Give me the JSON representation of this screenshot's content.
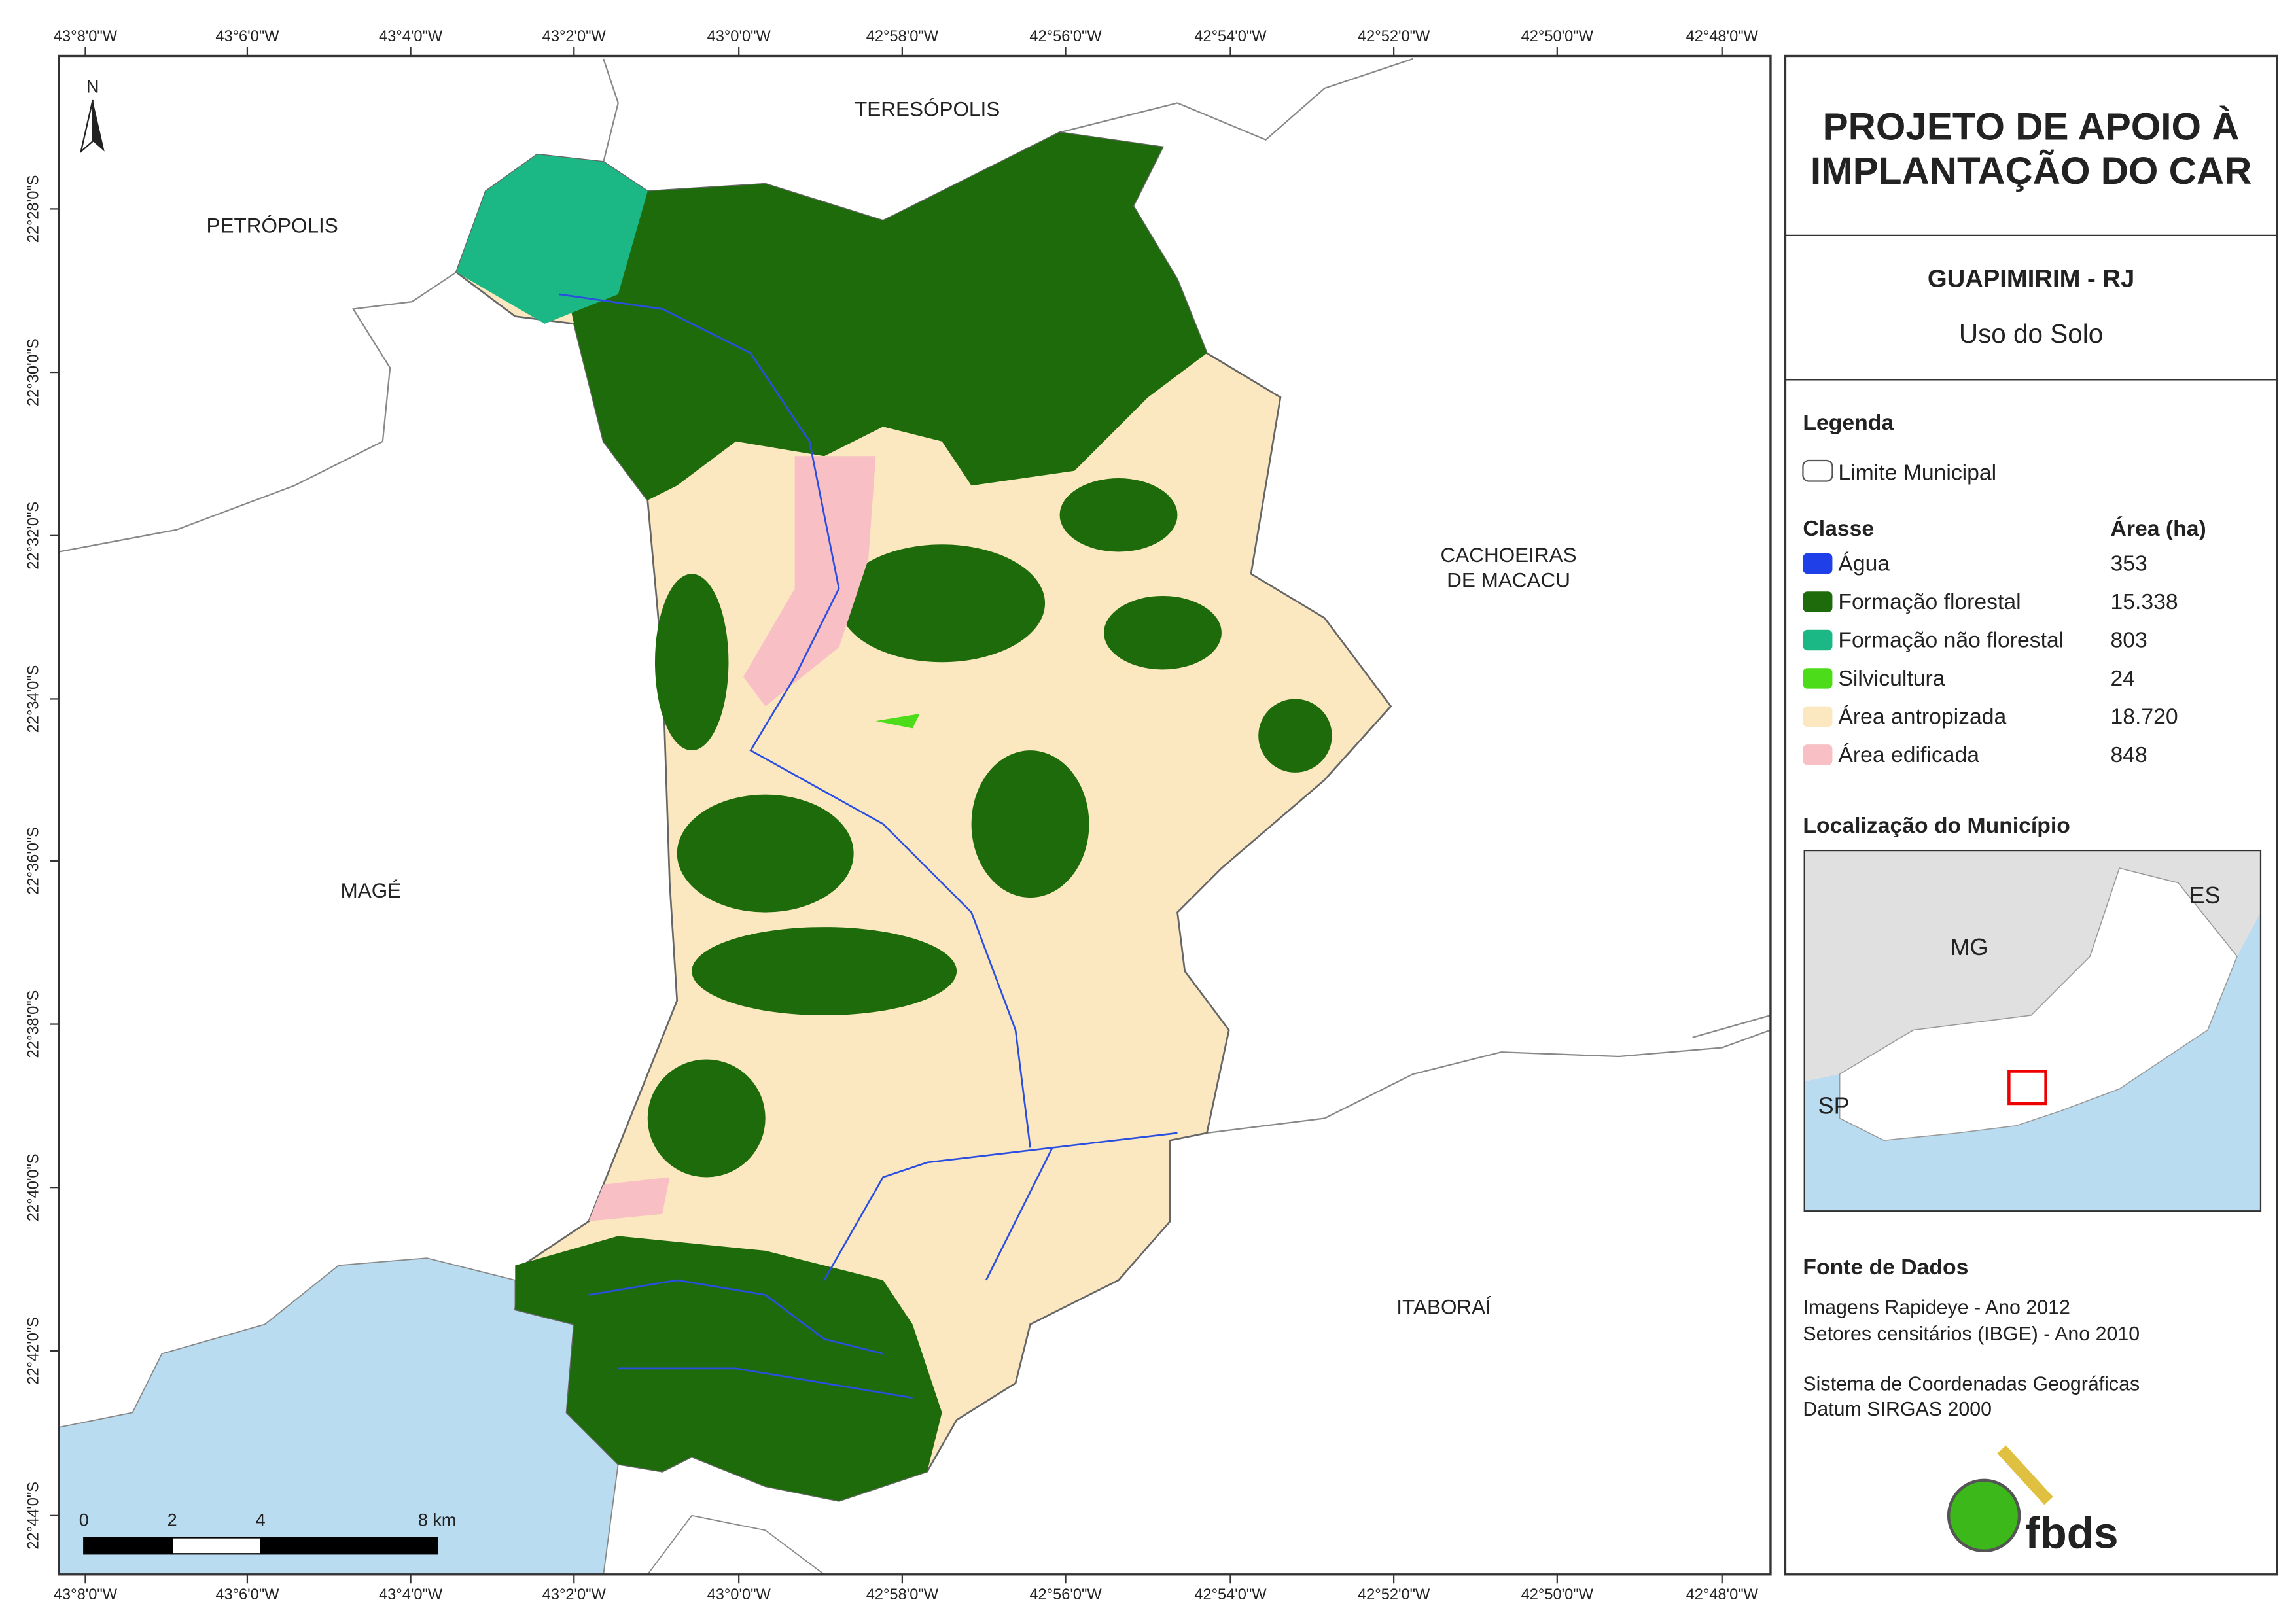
{
  "map": {
    "lon_ticks": [
      "43°8'0\"W",
      "43°6'0\"W",
      "43°4'0\"W",
      "43°2'0\"W",
      "43°0'0\"W",
      "42°58'0\"W",
      "42°56'0\"W",
      "42°54'0\"W",
      "42°52'0\"W",
      "42°50'0\"W",
      "42°48'0\"W"
    ],
    "lat_ticks": [
      "22°28'0\"S",
      "22°30'0\"S",
      "22°32'0\"S",
      "22°34'0\"S",
      "22°36'0\"S",
      "22°38'0\"S",
      "22°40'0\"S",
      "22°42'0\"S",
      "22°44'0\"S"
    ],
    "north": "N",
    "places": [
      "TERESÓPOLIS",
      "PETRÓPOLIS",
      "CACHOEIRAS",
      "DE MACACU",
      "MAGÉ",
      "ITABORAÍ"
    ],
    "scale_labels": [
      "0",
      "2",
      "4",
      "8 km"
    ]
  },
  "panel": {
    "title_lines": [
      "PROJETO DE APOIO À",
      "IMPLANTAÇÃO DO CAR"
    ],
    "municipality": "GUAPIMIRIM - RJ",
    "subtitle": "Uso do Solo",
    "legend_title": "Legenda",
    "boundary": "Limite Municipal",
    "class_header": "Classe",
    "area_header": "Área (ha)",
    "classes": [
      {
        "name": "Água",
        "area": "353",
        "color": "#1f3fe8"
      },
      {
        "name": "Formação florestal",
        "area": "15.338",
        "color": "#1e6b0b"
      },
      {
        "name": "Formação não florestal",
        "area": "803",
        "color": "#1bb886"
      },
      {
        "name": "Silvicultura",
        "area": "24",
        "color": "#4cdc1a"
      },
      {
        "name": "Área antropizada",
        "area": "18.720",
        "color": "#fbe8c0"
      },
      {
        "name": "Área edificada",
        "area": "848",
        "color": "#f8c0c4"
      }
    ],
    "location_title": "Localização do Município",
    "inset_labels": [
      "ES",
      "MG",
      "SP"
    ],
    "sources_title": "Fonte de Dados",
    "sources": [
      "Imagens Rapideye - Ano 2012",
      "Setores censitários (IBGE) - Ano 2010",
      "Sistema de Coordenadas Geográficas",
      "Datum SIRGAS 2000"
    ],
    "logo": "fbds"
  }
}
